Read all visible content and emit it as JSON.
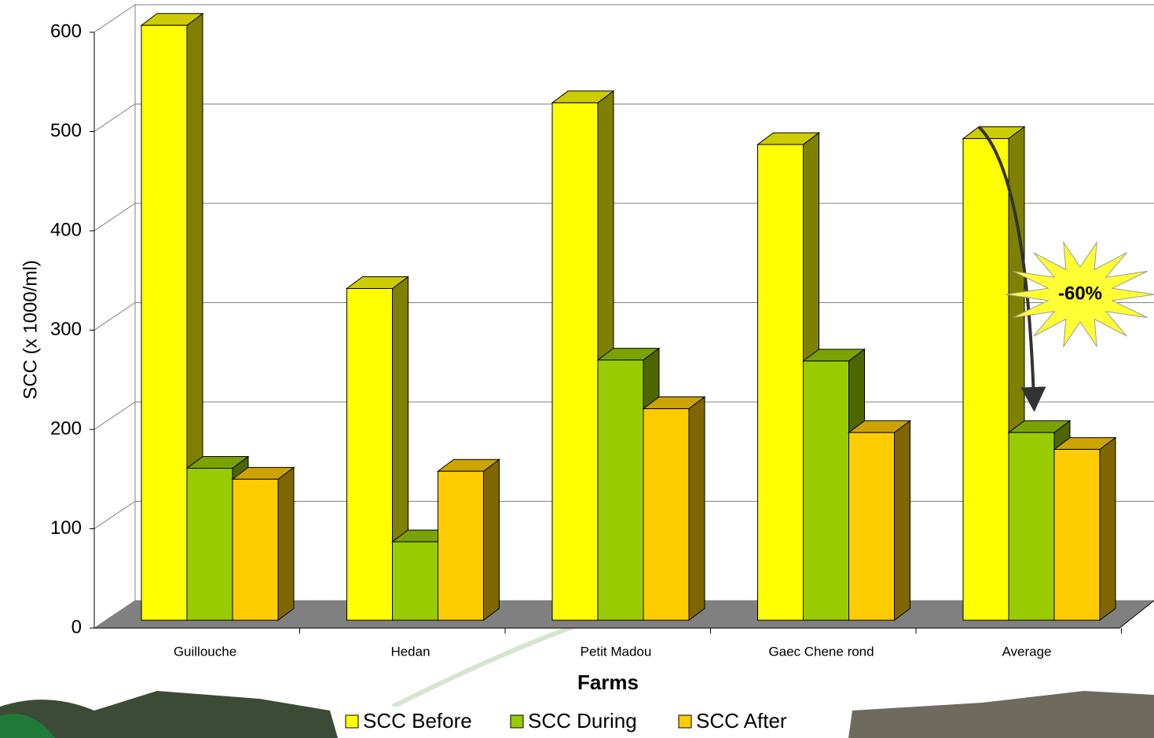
{
  "chart_data": {
    "type": "bar3d",
    "x_label": "Farms",
    "y_label": "SCC (x 1000/ml)",
    "categories": [
      "Guillouche",
      "Hedan",
      "Petit Madou",
      "Gaec Chene rond",
      "Average"
    ],
    "series": [
      {
        "name": "SCC Before",
        "color": "#ffff00",
        "values": [
          599,
          334,
          521,
          479,
          485
        ]
      },
      {
        "name": "SCC During",
        "color": "#99cc00",
        "values": [
          153,
          79,
          262,
          261,
          189
        ]
      },
      {
        "name": "SCC After",
        "color": "#ffcc00",
        "values": [
          142,
          150,
          213,
          189,
          172
        ]
      }
    ],
    "ylim": [
      0,
      600
    ],
    "yticks": [
      0,
      100,
      200,
      300,
      400,
      500,
      600
    ],
    "grid": true,
    "legend": "bottom",
    "annotation": "-60%"
  }
}
